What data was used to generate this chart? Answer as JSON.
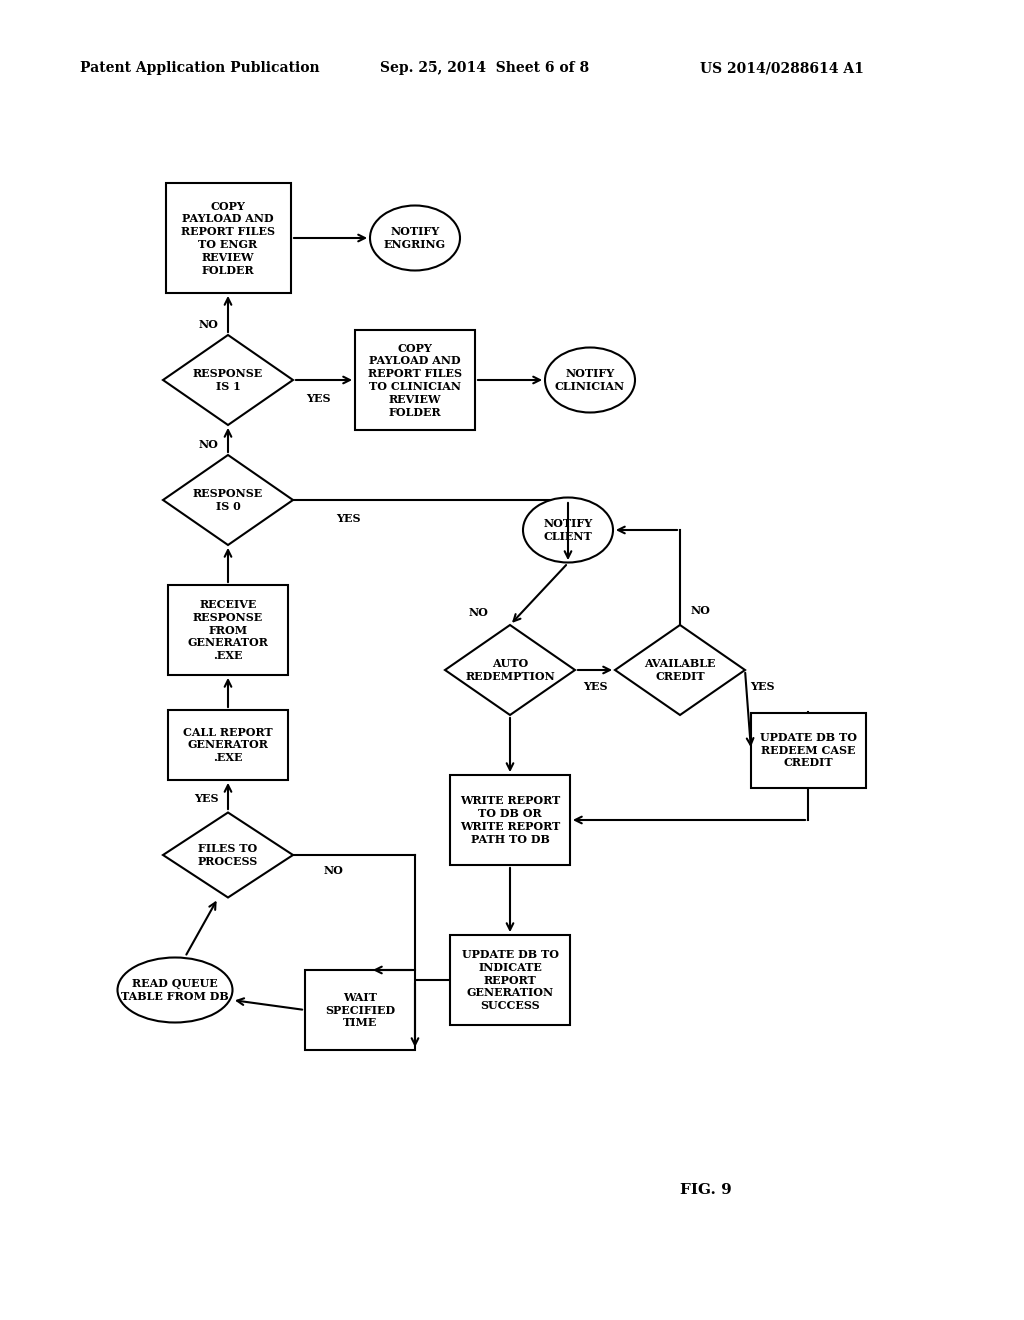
{
  "header_left": "Patent Application Publication",
  "header_mid": "Sep. 25, 2014  Sheet 6 of 8",
  "header_right": "US 2014/0288614 A1",
  "fig_label": "FIG. 9",
  "bg_color": "#ffffff",
  "line_color": "#000000",
  "nodes": {
    "copy_engr": {
      "label": "COPY\nPAYLOAD AND\nREPORT FILES\nTO ENGR\nREVIEW\nFOLDER"
    },
    "notify_engr": {
      "label": "NOTIFY\nENGRING"
    },
    "response_is_1": {
      "label": "RESPONSE\nIS 1"
    },
    "copy_clinician": {
      "label": "COPY\nPAYLOAD AND\nREPORT FILES\nTO CLINICIAN\nREVIEW\nFOLDER"
    },
    "notify_clinician": {
      "label": "NOTIFY\nCLINICIAN"
    },
    "response_is_0": {
      "label": "RESPONSE\nIS 0"
    },
    "receive_response": {
      "label": "RECEIVE\nRESPONSE\nFROM\nGENERATOR\n.EXE"
    },
    "call_report": {
      "label": "CALL REPORT\nGENERATOR\n.EXE"
    },
    "files_to_process": {
      "label": "FILES TO\nPROCESS"
    },
    "read_queue": {
      "label": "READ QUEUE\nTABLE FROM DB"
    },
    "wait_time": {
      "label": "WAIT\nSPECIFIED\nTIME"
    },
    "notify_client": {
      "label": "NOTIFY\nCLIENT"
    },
    "auto_redemption": {
      "label": "AUTO\nREDEMPTION"
    },
    "write_report": {
      "label": "WRITE REPORT\nTO DB OR\nWRITE REPORT\nPATH TO DB"
    },
    "update_db_success": {
      "label": "UPDATE DB TO\nINDICATE\nREPORT\nGENERATION\nSUCCESS"
    },
    "available_credit": {
      "label": "AVAILABLE\nCREDIT"
    },
    "update_db_redeem": {
      "label": "UPDATE DB TO\nREDEEM CASE\nCREDIT"
    }
  }
}
